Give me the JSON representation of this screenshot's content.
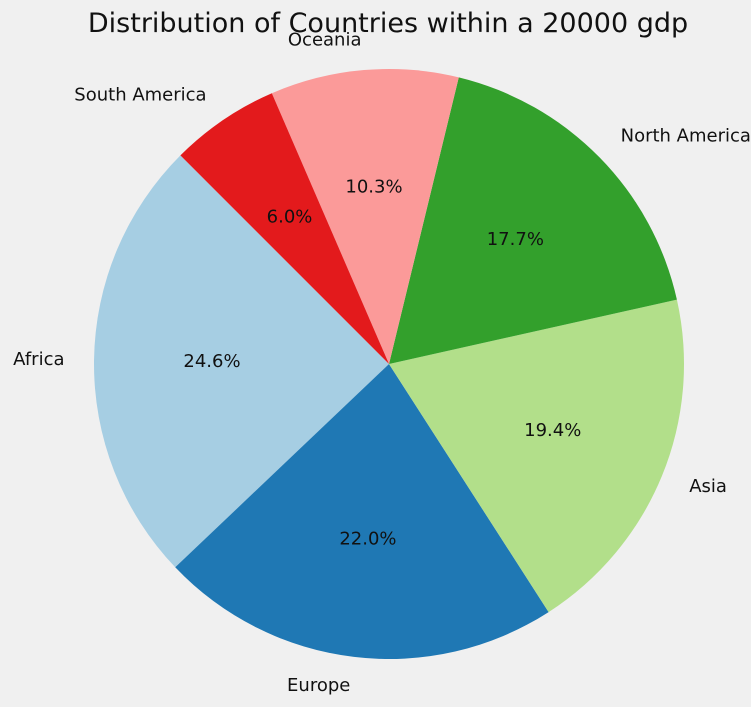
{
  "chart_data": {
    "type": "pie",
    "title": "Distribution of Countries within a 20000 gdp",
    "categories": [
      "Africa",
      "Europe",
      "Asia",
      "North America",
      "Oceania",
      "South America"
    ],
    "values": [
      24.6,
      22.0,
      19.4,
      17.7,
      10.3,
      6.0
    ],
    "value_labels": [
      "24.6%",
      "22.0%",
      "19.4%",
      "17.7%",
      "10.3%",
      "6.0%"
    ],
    "colors": [
      "#a6cee3",
      "#1f78b4",
      "#b2df8a",
      "#33a02c",
      "#fb9a99",
      "#e31a1c"
    ],
    "start_angle_deg": 135,
    "direction": "counterclockwise",
    "legend": "none"
  }
}
